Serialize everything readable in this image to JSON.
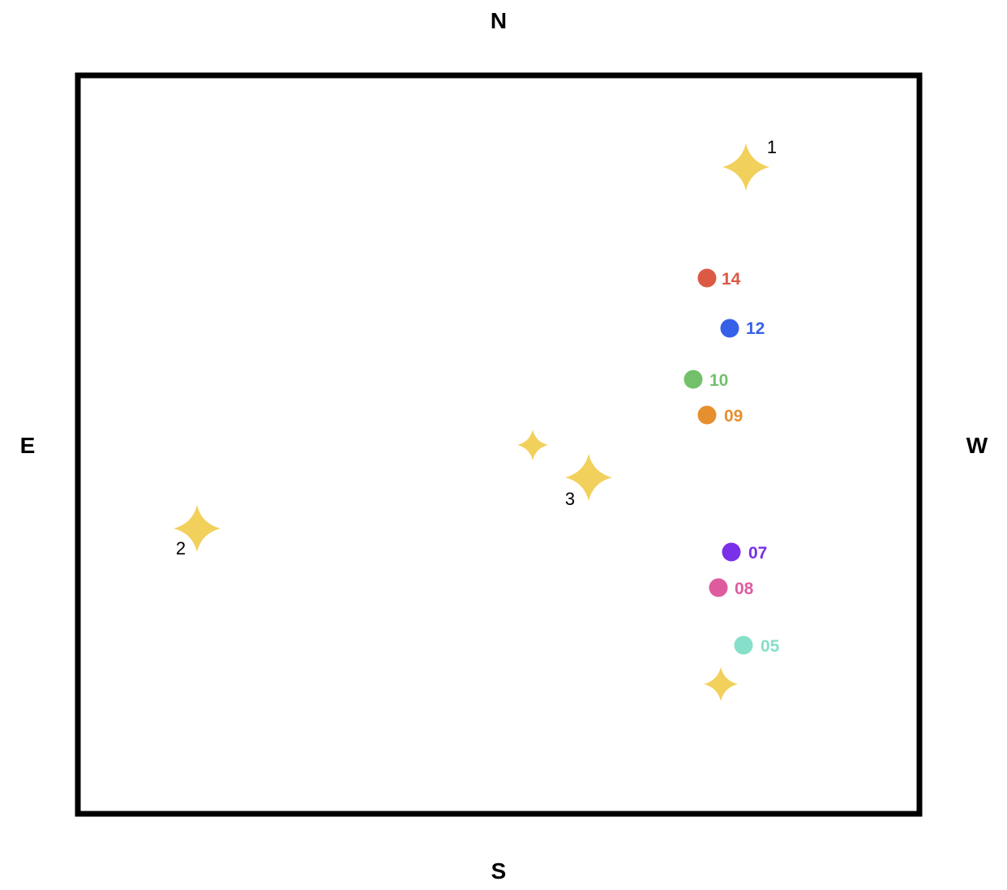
{
  "compass": {
    "north": "N",
    "south": "S",
    "east": "E",
    "west": "W"
  },
  "stars": [
    {
      "id": "star-1",
      "label": "1",
      "size": "large"
    },
    {
      "id": "star-2",
      "label": "2",
      "size": "large"
    },
    {
      "id": "star-3",
      "label": "3",
      "size": "large"
    },
    {
      "id": "star-small-center",
      "label": "",
      "size": "small"
    },
    {
      "id": "star-small-bottom",
      "label": "",
      "size": "small"
    }
  ],
  "points": [
    {
      "label": "14",
      "color": "#db5a45"
    },
    {
      "label": "12",
      "color": "#3760e8"
    },
    {
      "label": "10",
      "color": "#72c06a"
    },
    {
      "label": "09",
      "color": "#e68f2e"
    },
    {
      "label": "07",
      "color": "#7a2fe8"
    },
    {
      "label": "08",
      "color": "#de5c9e"
    },
    {
      "label": "05",
      "color": "#85dfc9"
    }
  ],
  "colors": {
    "star": "#f2d05c",
    "frame": "#000000",
    "background": "#ffffff"
  }
}
